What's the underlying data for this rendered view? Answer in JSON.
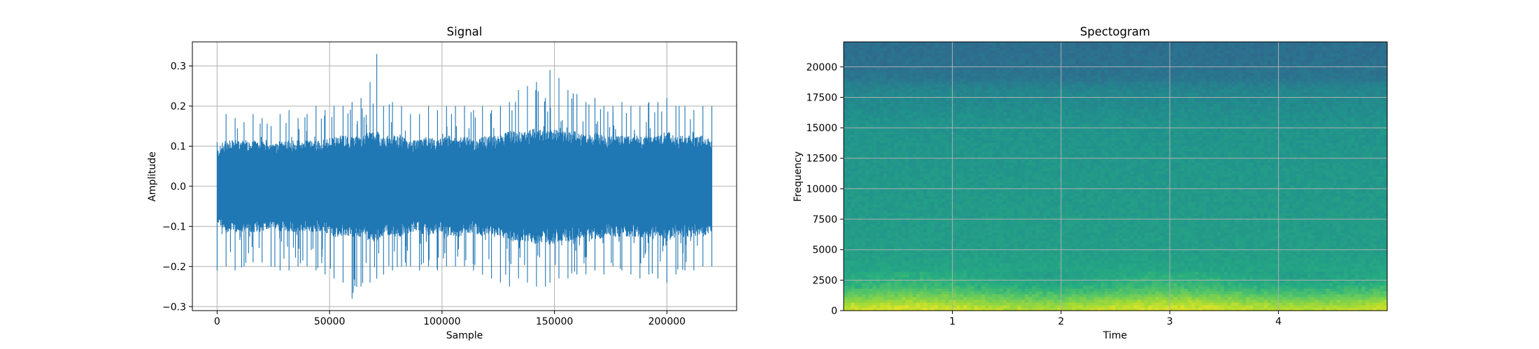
{
  "chart_data": [
    {
      "type": "line",
      "title": "Signal",
      "xlabel": "Sample",
      "ylabel": "Amplitude",
      "xlim": [
        -11000,
        231000
      ],
      "ylim": [
        -0.31,
        0.36
      ],
      "x_ticks": [
        0,
        50000,
        100000,
        150000,
        200000
      ],
      "x_tick_labels": [
        "0",
        "50000",
        "100000",
        "150000",
        "200000"
      ],
      "y_ticks": [
        -0.3,
        -0.2,
        -0.1,
        0.0,
        0.1,
        0.2,
        0.3
      ],
      "y_tick_labels": [
        "−0.3",
        "−0.2",
        "−0.1",
        "0.0",
        "0.1",
        "0.2",
        "0.3"
      ],
      "grid": true,
      "color": "#1f77b4",
      "series": [
        {
          "x": [
            0,
            4000,
            8000,
            12000,
            16000,
            20000,
            24000,
            28000,
            32000,
            36000,
            40000,
            44000,
            48000,
            52000,
            56000,
            60000,
            64000,
            68000,
            71000,
            74000,
            78000,
            82000,
            86000,
            90000,
            94000,
            98000,
            102000,
            106000,
            110000,
            114000,
            118000,
            122000,
            126000,
            130000,
            134000,
            138000,
            142000,
            146000,
            148000,
            152000,
            156000,
            160000,
            164000,
            168000,
            172000,
            176000,
            180000,
            184000,
            188000,
            192000,
            196000,
            200000,
            204000,
            208000,
            212000,
            216000,
            220000
          ],
          "max": [
            0.11,
            0.18,
            0.17,
            0.16,
            0.18,
            0.17,
            0.15,
            0.18,
            0.19,
            0.17,
            0.18,
            0.2,
            0.19,
            0.2,
            0.2,
            0.21,
            0.22,
            0.26,
            0.33,
            0.2,
            0.21,
            0.2,
            0.18,
            0.18,
            0.2,
            0.19,
            0.2,
            0.2,
            0.2,
            0.19,
            0.2,
            0.19,
            0.2,
            0.21,
            0.24,
            0.25,
            0.26,
            0.22,
            0.29,
            0.27,
            0.24,
            0.23,
            0.21,
            0.22,
            0.2,
            0.2,
            0.21,
            0.2,
            0.2,
            0.21,
            0.21,
            0.22,
            0.2,
            0.2,
            0.19,
            0.2,
            0.2
          ],
          "min": [
            -0.21,
            -0.2,
            -0.21,
            -0.2,
            -0.19,
            -0.19,
            -0.2,
            -0.21,
            -0.21,
            -0.2,
            -0.2,
            -0.21,
            -0.22,
            -0.23,
            -0.24,
            -0.28,
            -0.25,
            -0.24,
            -0.23,
            -0.22,
            -0.21,
            -0.2,
            -0.2,
            -0.21,
            -0.2,
            -0.21,
            -0.2,
            -0.2,
            -0.2,
            -0.21,
            -0.22,
            -0.23,
            -0.24,
            -0.25,
            -0.23,
            -0.24,
            -0.25,
            -0.25,
            -0.24,
            -0.23,
            -0.23,
            -0.22,
            -0.22,
            -0.21,
            -0.22,
            -0.2,
            -0.21,
            -0.22,
            -0.23,
            -0.22,
            -0.23,
            -0.24,
            -0.22,
            -0.21,
            -0.21,
            -0.2,
            -0.2
          ],
          "p90": [
            0.08,
            0.1,
            0.1,
            0.1,
            0.1,
            0.1,
            0.09,
            0.1,
            0.1,
            0.1,
            0.1,
            0.1,
            0.1,
            0.11,
            0.11,
            0.11,
            0.11,
            0.12,
            0.12,
            0.11,
            0.11,
            0.11,
            0.1,
            0.1,
            0.11,
            0.1,
            0.11,
            0.11,
            0.11,
            0.1,
            0.11,
            0.11,
            0.11,
            0.12,
            0.12,
            0.12,
            0.13,
            0.12,
            0.13,
            0.12,
            0.12,
            0.12,
            0.11,
            0.12,
            0.11,
            0.11,
            0.11,
            0.11,
            0.11,
            0.11,
            0.11,
            0.12,
            0.11,
            0.11,
            0.11,
            0.11,
            0.1
          ]
        }
      ]
    },
    {
      "type": "heatmap",
      "title": "Spectogram",
      "xlabel": "Time",
      "ylabel": "Frequency",
      "xlim": [
        0,
        5.0
      ],
      "ylim": [
        0,
        22050
      ],
      "x_ticks": [
        1,
        2,
        3,
        4
      ],
      "x_tick_labels": [
        "1",
        "2",
        "3",
        "4"
      ],
      "y_ticks": [
        0,
        2500,
        5000,
        7500,
        10000,
        12500,
        15000,
        17500,
        20000
      ],
      "y_tick_labels": [
        "0",
        "2500",
        "5000",
        "7500",
        "10000",
        "12500",
        "15000",
        "17500",
        "20000"
      ],
      "grid": true,
      "colormap": "viridis",
      "frequency_profile": {
        "frequency": [
          0,
          500,
          1000,
          1500,
          2000,
          2500,
          3000,
          4000,
          5000,
          7500,
          10000,
          12500,
          15000,
          16000,
          17000,
          18000,
          18500,
          19000,
          20000,
          22050
        ],
        "level": [
          0.93,
          0.88,
          0.8,
          0.72,
          0.66,
          0.62,
          0.6,
          0.58,
          0.56,
          0.55,
          0.54,
          0.53,
          0.52,
          0.5,
          0.48,
          0.46,
          0.44,
          0.4,
          0.38,
          0.37
        ]
      }
    }
  ]
}
